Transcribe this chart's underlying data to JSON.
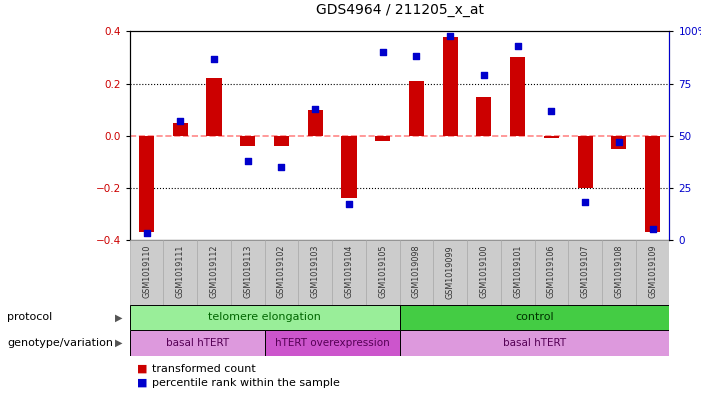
{
  "title": "GDS4964 / 211205_x_at",
  "samples": [
    "GSM1019110",
    "GSM1019111",
    "GSM1019112",
    "GSM1019113",
    "GSM1019102",
    "GSM1019103",
    "GSM1019104",
    "GSM1019105",
    "GSM1019098",
    "GSM1019099",
    "GSM1019100",
    "GSM1019101",
    "GSM1019106",
    "GSM1019107",
    "GSM1019108",
    "GSM1019109"
  ],
  "bar_values": [
    -0.37,
    0.05,
    0.22,
    -0.04,
    -0.04,
    0.1,
    -0.24,
    -0.02,
    0.21,
    0.38,
    0.15,
    0.3,
    -0.01,
    -0.2,
    -0.05,
    -0.37
  ],
  "dot_values": [
    3,
    57,
    87,
    38,
    35,
    63,
    17,
    90,
    88,
    98,
    79,
    93,
    62,
    18,
    47,
    5
  ],
  "ylim": [
    -0.4,
    0.4
  ],
  "yticks_left": [
    -0.4,
    -0.2,
    0.0,
    0.2,
    0.4
  ],
  "yticks_right": [
    0,
    25,
    50,
    75,
    100
  ],
  "bar_color": "#cc0000",
  "dot_color": "#0000cc",
  "zero_line_color": "#ff8888",
  "dotted_line_color": "#000000",
  "background_color": "#ffffff",
  "plot_bg_color": "#ffffff",
  "protocol_labels": [
    "telomere elongation",
    "control"
  ],
  "protocol_colors": [
    "#99ee99",
    "#44cc44"
  ],
  "genotype_labels": [
    "basal hTERT",
    "hTERT overexpression",
    "basal hTERT"
  ],
  "genotype_colors": [
    "#dd99dd",
    "#cc55cc",
    "#dd99dd"
  ],
  "label_font_size": 8,
  "title_font_size": 10,
  "right_axis_color": "#0000cc",
  "left_axis_color": "#cc0000",
  "tick_bg_color": "#cccccc"
}
